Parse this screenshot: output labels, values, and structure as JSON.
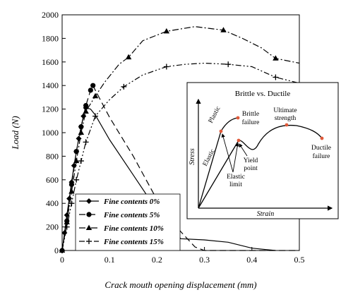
{
  "chart_data": {
    "type": "line",
    "xlabel": "Crack mouth opening displacement (mm)",
    "ylabel": "Load (N)",
    "xlim": [
      0,
      0.5
    ],
    "ylim": [
      0,
      2000
    ],
    "x_ticks": [
      "0",
      "0.1",
      "0.2",
      "0.3",
      "0.4",
      "0.5"
    ],
    "y_ticks": [
      "0",
      "200",
      "400",
      "600",
      "800",
      "1000",
      "1200",
      "1400",
      "1600",
      "1800",
      "2000"
    ],
    "grid": false,
    "legend_position": "bottom-left",
    "series": [
      {
        "name": "Fine contents 0%",
        "line": "solid",
        "marker": "diamond",
        "color": "#000000",
        "x": [
          0,
          0.005,
          0.01,
          0.015,
          0.02,
          0.025,
          0.03,
          0.035,
          0.04,
          0.045,
          0.05,
          0.06,
          0.07,
          0.1,
          0.15,
          0.2,
          0.25,
          0.3,
          0.35,
          0.4,
          0.45
        ],
        "y": [
          0,
          150,
          300,
          440,
          580,
          720,
          840,
          950,
          1050,
          1140,
          1210,
          1200,
          1150,
          940,
          640,
          340,
          100,
          90,
          70,
          20,
          0
        ],
        "marker_x": [
          0,
          0.005,
          0.01,
          0.015,
          0.02,
          0.025,
          0.03,
          0.035,
          0.04,
          0.045,
          0.05
        ]
      },
      {
        "name": "Fine contents 5%",
        "line": "dashed",
        "marker": "circle",
        "color": "#000000",
        "x": [
          0,
          0.01,
          0.02,
          0.03,
          0.04,
          0.05,
          0.06,
          0.065,
          0.07,
          0.1,
          0.15,
          0.2,
          0.25,
          0.28,
          0.3,
          0.4,
          0.5
        ],
        "y": [
          0,
          250,
          560,
          840,
          1050,
          1230,
          1360,
          1400,
          1360,
          1130,
          800,
          430,
          160,
          30,
          0,
          0,
          0
        ],
        "marker_x": [
          0,
          0.01,
          0.02,
          0.03,
          0.04,
          0.05,
          0.06,
          0.065
        ]
      },
      {
        "name": "Fine contents 10%",
        "line": "dashdot",
        "marker": "triangle",
        "color": "#000000",
        "x": [
          0,
          0.01,
          0.02,
          0.03,
          0.04,
          0.05,
          0.07,
          0.09,
          0.12,
          0.14,
          0.17,
          0.22,
          0.25,
          0.28,
          0.3,
          0.34,
          0.38,
          0.42,
          0.45,
          0.5
        ],
        "y": [
          0,
          240,
          500,
          760,
          1000,
          1180,
          1310,
          1430,
          1580,
          1640,
          1780,
          1860,
          1880,
          1900,
          1890,
          1870,
          1800,
          1720,
          1630,
          1590
        ],
        "marker_x": [
          0,
          0.01,
          0.02,
          0.03,
          0.04,
          0.05,
          0.07,
          0.14,
          0.22,
          0.34,
          0.45
        ]
      },
      {
        "name": "Fine contents 15%",
        "line": "dashdotdot",
        "marker": "plus",
        "color": "#000000",
        "x": [
          0,
          0.01,
          0.02,
          0.03,
          0.04,
          0.05,
          0.07,
          0.1,
          0.13,
          0.17,
          0.22,
          0.26,
          0.3,
          0.35,
          0.4,
          0.45,
          0.5
        ],
        "y": [
          0,
          200,
          400,
          600,
          760,
          920,
          1140,
          1280,
          1390,
          1490,
          1560,
          1580,
          1590,
          1580,
          1560,
          1470,
          1420
        ],
        "marker_x": [
          0,
          0.01,
          0.02,
          0.03,
          0.04,
          0.05,
          0.07,
          0.13,
          0.22,
          0.35,
          0.45
        ]
      }
    ]
  },
  "inset": {
    "title": "Brittle vs. Ductile",
    "xlabel": "Strain",
    "ylabel": "Stress",
    "labels": {
      "plastic": "Plastic",
      "elastic": "Elastic",
      "brittle_line1": "Brittle",
      "brittle_line2": "failure",
      "ultimate_line1": "Ultimate",
      "ultimate_line2": "strength",
      "ductile_line1": "Ductile",
      "ductile_line2": "failure",
      "yield_line1": "Yield",
      "yield_line2": "point",
      "elastic_limit_line1": "Elastic",
      "elastic_limit_line2": "limit"
    },
    "point_color": "#e05a3a"
  }
}
